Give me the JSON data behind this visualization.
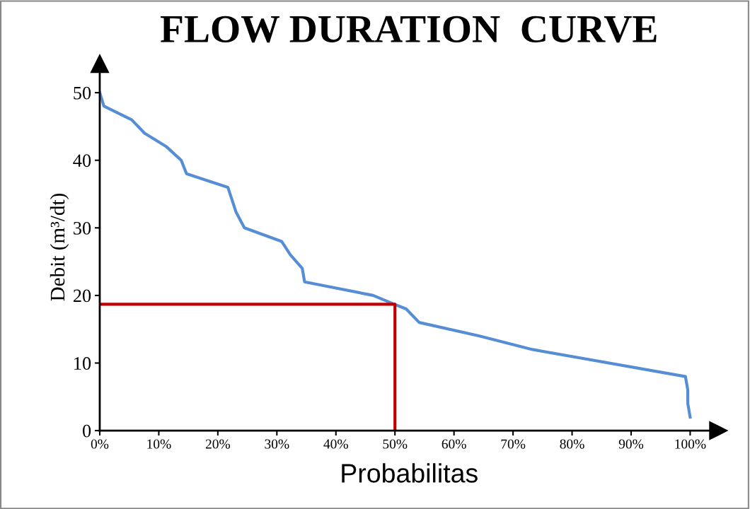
{
  "chart_data": {
    "type": "line",
    "title": "FLOW DURATION  CURVE",
    "xlabel": "Probabilitas",
    "ylabel": "Debit (m³/dt)",
    "series": [
      {
        "color": "#558ed5",
        "x": [
          0,
          0.7,
          5.4,
          7.6,
          11.3,
          13.8,
          14.7,
          21.7,
          23.1,
          24.5,
          30.8,
          32.3,
          34.3,
          34.7,
          46.3,
          49.9,
          51.9,
          54.1,
          64.3,
          73.3,
          99.2,
          99.6,
          99.6,
          100
        ],
        "values": [
          50,
          48,
          46,
          44,
          42,
          40,
          38,
          36,
          32.3,
          30,
          28,
          26,
          24,
          22,
          20,
          18.7,
          18,
          16,
          14,
          12,
          8,
          6,
          4,
          2
        ]
      },
      {
        "color": "#c00000",
        "x": [
          0,
          50,
          50
        ],
        "values": [
          18.7,
          18.7,
          0
        ]
      }
    ],
    "xlim": [
      0,
      104.8
    ],
    "ylim": [
      0,
      54.3
    ],
    "xticks": [
      {
        "value": 0,
        "label": "0%"
      },
      {
        "value": 10,
        "label": "10%"
      },
      {
        "value": 20,
        "label": "20%"
      },
      {
        "value": 30,
        "label": "30%"
      },
      {
        "value": 40,
        "label": "40%"
      },
      {
        "value": 50,
        "label": "50%"
      },
      {
        "value": 60,
        "label": "60%"
      },
      {
        "value": 70,
        "label": "70%"
      },
      {
        "value": 80,
        "label": "80%"
      },
      {
        "value": 90,
        "label": "90%"
      },
      {
        "value": 100,
        "label": "100%"
      }
    ],
    "yticks": [
      0,
      10,
      20,
      30,
      40,
      50
    ],
    "grid": false,
    "legend": false,
    "marker": "none",
    "line_style": "solid"
  }
}
